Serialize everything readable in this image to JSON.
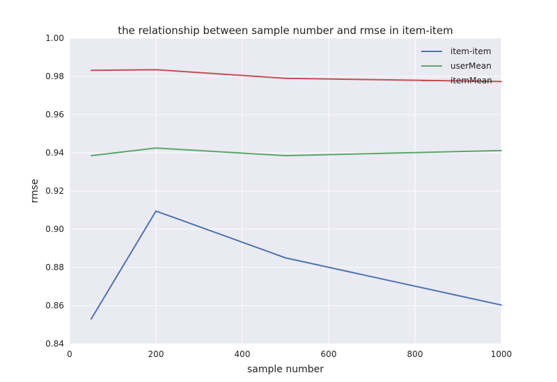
{
  "chart_data": {
    "type": "line",
    "title": "the relationship between sample number and rmse in item-item",
    "xlabel": "sample number",
    "ylabel": "rmse",
    "xlim": [
      0,
      1000
    ],
    "ylim": [
      0.84,
      1.0
    ],
    "xticks": [
      0,
      200,
      400,
      600,
      800,
      1000
    ],
    "yticks": [
      "0.84",
      "0.86",
      "0.88",
      "0.90",
      "0.92",
      "0.94",
      "0.96",
      "0.98",
      "1.00"
    ],
    "grid": true,
    "legend_position": "top-right",
    "x": [
      50,
      200,
      500,
      1000
    ],
    "series": [
      {
        "name": "item-item",
        "color": "#4C72B0",
        "values": [
          0.853,
          0.9095,
          0.885,
          0.8603
        ]
      },
      {
        "name": "userMean",
        "color": "#55A868",
        "values": [
          0.9385,
          0.9425,
          0.9385,
          0.9412
        ]
      },
      {
        "name": "itemMean",
        "color": "#C44E52",
        "values": [
          0.9832,
          0.9835,
          0.979,
          0.9773
        ]
      }
    ]
  }
}
